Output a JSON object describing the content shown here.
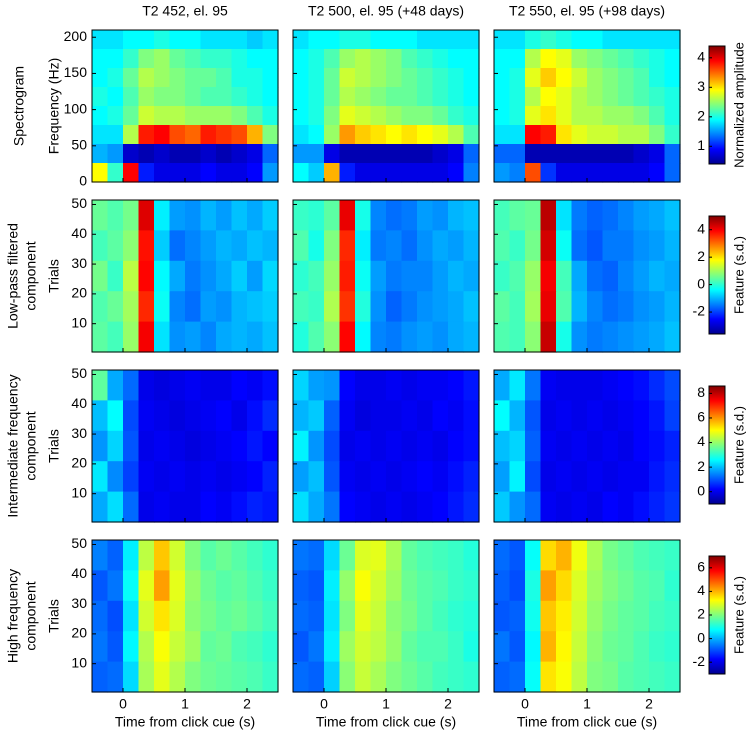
{
  "chart_data": [
    {
      "type": "heatmap",
      "title": "T2 452, el. 95",
      "row_label": [
        "Spectrogram"
      ],
      "ylabel": "Frequency (Hz)",
      "xlim": [
        -0.5,
        2.5
      ],
      "xticks": [
        0,
        1,
        2
      ],
      "ylim": [
        0,
        210
      ],
      "yticks": [
        0,
        50,
        100,
        150,
        200
      ],
      "clim": [
        0.4,
        4.4
      ],
      "z": [
        [
          1.8,
          1.8,
          1.9,
          1.9,
          2.0,
          1.9,
          1.9,
          1.8,
          1.8,
          1.8,
          1.7,
          1.8
        ],
        [
          1.9,
          1.9,
          2.1,
          2.4,
          2.5,
          2.3,
          2.2,
          2.1,
          2.1,
          2.0,
          1.9,
          1.9
        ],
        [
          1.9,
          2.0,
          2.3,
          2.6,
          2.5,
          2.4,
          2.3,
          2.3,
          2.2,
          2.0,
          2.0,
          1.9
        ],
        [
          2.0,
          1.9,
          2.2,
          2.5,
          2.4,
          2.4,
          2.3,
          2.2,
          2.2,
          2.1,
          2.0,
          1.9
        ],
        [
          1.9,
          2.0,
          2.3,
          2.7,
          2.6,
          2.6,
          2.5,
          2.5,
          2.5,
          2.4,
          2.2,
          2.0
        ],
        [
          1.8,
          1.8,
          2.6,
          3.8,
          3.9,
          3.6,
          3.5,
          3.8,
          3.7,
          3.6,
          3.2,
          2.4
        ],
        [
          1.6,
          1.5,
          0.7,
          0.6,
          0.7,
          0.6,
          0.6,
          0.7,
          0.6,
          0.7,
          0.8,
          1.3
        ],
        [
          2.9,
          2.1,
          3.9,
          1.0,
          0.8,
          0.8,
          0.8,
          0.9,
          0.8,
          0.8,
          0.9,
          1.5
        ]
      ]
    },
    {
      "type": "heatmap",
      "title": "T2 500, el. 95 (+48 days)",
      "xlim": [
        -0.5,
        2.5
      ],
      "xticks": [
        0,
        1,
        2
      ],
      "ylim": [
        0,
        210
      ],
      "yticks": [
        0,
        50,
        100,
        150,
        200
      ],
      "clim": [
        0.4,
        4.4
      ],
      "z": [
        [
          1.8,
          1.9,
          1.9,
          2.0,
          2.0,
          1.9,
          1.9,
          1.9,
          1.8,
          1.8,
          1.8,
          1.8
        ],
        [
          1.9,
          2.0,
          2.2,
          2.5,
          2.6,
          2.5,
          2.4,
          2.2,
          2.1,
          2.0,
          1.9,
          1.9
        ],
        [
          1.9,
          2.0,
          2.3,
          2.7,
          2.6,
          2.5,
          2.4,
          2.3,
          2.2,
          2.1,
          2.0,
          1.9
        ],
        [
          1.9,
          2.0,
          2.3,
          2.6,
          2.5,
          2.4,
          2.3,
          2.3,
          2.2,
          2.1,
          2.0,
          1.9
        ],
        [
          1.9,
          2.0,
          2.4,
          2.8,
          2.7,
          2.6,
          2.5,
          2.4,
          2.4,
          2.3,
          2.1,
          2.0
        ],
        [
          1.8,
          1.9,
          2.5,
          3.3,
          3.1,
          3.0,
          2.9,
          3.0,
          2.9,
          2.8,
          2.6,
          2.2
        ],
        [
          1.5,
          1.5,
          0.8,
          0.6,
          0.6,
          0.6,
          0.6,
          0.6,
          0.6,
          0.7,
          0.8,
          1.3
        ],
        [
          1.9,
          1.7,
          3.2,
          1.0,
          0.8,
          0.8,
          0.8,
          0.8,
          0.8,
          0.8,
          0.9,
          1.4
        ]
      ]
    },
    {
      "type": "heatmap",
      "title": "T2 550, el. 95 (+98 days)",
      "xlim": [
        -0.5,
        2.5
      ],
      "xticks": [
        0,
        1,
        2
      ],
      "ylim": [
        0,
        210
      ],
      "yticks": [
        0,
        50,
        100,
        150,
        200
      ],
      "clim": [
        0.4,
        4.4
      ],
      "cticks": [
        1,
        2,
        3,
        4
      ],
      "colorbar_label": "Normalized amplitude",
      "z": [
        [
          1.8,
          1.8,
          2.0,
          2.1,
          2.0,
          1.9,
          1.9,
          1.8,
          1.8,
          1.8,
          1.8,
          1.8
        ],
        [
          1.9,
          1.9,
          2.6,
          2.9,
          2.8,
          2.5,
          2.4,
          2.3,
          2.2,
          2.1,
          2.0,
          1.9
        ],
        [
          1.9,
          2.0,
          2.8,
          3.1,
          2.9,
          2.7,
          2.5,
          2.4,
          2.3,
          2.2,
          2.0,
          1.9
        ],
        [
          1.9,
          2.0,
          2.6,
          2.9,
          2.8,
          2.6,
          2.5,
          2.4,
          2.3,
          2.2,
          2.1,
          2.0
        ],
        [
          1.9,
          2.0,
          2.8,
          3.0,
          2.8,
          2.6,
          2.6,
          2.5,
          2.5,
          2.4,
          2.2,
          2.0
        ],
        [
          1.8,
          1.8,
          3.9,
          3.8,
          3.0,
          2.8,
          2.7,
          2.7,
          2.6,
          2.6,
          2.4,
          2.1
        ],
        [
          1.3,
          1.3,
          0.6,
          0.6,
          0.6,
          0.6,
          0.6,
          0.6,
          0.6,
          0.7,
          0.8,
          1.3
        ],
        [
          1.5,
          1.4,
          3.6,
          1.1,
          0.8,
          0.8,
          0.8,
          0.8,
          0.8,
          0.8,
          0.9,
          1.3
        ]
      ]
    },
    {
      "type": "heatmap",
      "row_label": [
        "Low-pass filtered",
        "component"
      ],
      "ylabel": "Trials",
      "xlim": [
        -0.5,
        2.5
      ],
      "xticks": [
        0,
        1,
        2
      ],
      "ylim": [
        0.5,
        51.5
      ],
      "yticks": [
        10,
        20,
        30,
        40,
        50
      ],
      "clim": [
        -3.6,
        5
      ],
      "z": [
        [
          0.5,
          0.3,
          0.6,
          4.2,
          -0.5,
          -1.2,
          -1.3,
          -1.0,
          -1.2,
          -0.9,
          -1.1,
          -0.8
        ],
        [
          0.2,
          0.4,
          0.8,
          3.8,
          -0.8,
          -1.6,
          -1.4,
          -1.2,
          -1.0,
          -1.1,
          -0.9,
          -1.0
        ],
        [
          0.6,
          0.1,
          1.2,
          3.9,
          -0.4,
          -1.1,
          -1.5,
          -1.3,
          -1.1,
          -0.8,
          -1.2,
          -0.7
        ],
        [
          0.3,
          0.5,
          1.0,
          3.6,
          -0.3,
          -1.4,
          -1.6,
          -1.2,
          -1.3,
          -1.0,
          -0.9,
          -0.8
        ],
        [
          0.4,
          0.2,
          0.9,
          4.0,
          -0.6,
          -1.3,
          -1.2,
          -1.4,
          -1.1,
          -1.0,
          -1.1,
          -0.9
        ]
      ]
    },
    {
      "type": "heatmap",
      "xlim": [
        -0.5,
        2.5
      ],
      "xticks": [
        0,
        1,
        2
      ],
      "ylim": [
        0.5,
        51.5
      ],
      "yticks": [
        10,
        20,
        30,
        40,
        50
      ],
      "clim": [
        -3.6,
        5
      ],
      "z": [
        [
          0.1,
          0.0,
          0.4,
          4.1,
          -0.2,
          -1.4,
          -1.6,
          -1.5,
          -1.2,
          -1.3,
          -1.0,
          -0.9
        ],
        [
          0.3,
          -0.2,
          0.7,
          3.6,
          -0.5,
          -1.5,
          -1.4,
          -1.6,
          -1.3,
          -1.1,
          -1.2,
          -1.0
        ],
        [
          0.0,
          0.2,
          0.9,
          3.7,
          -0.3,
          -1.2,
          -1.5,
          -1.4,
          -1.4,
          -1.2,
          -1.0,
          -1.1
        ],
        [
          0.2,
          0.1,
          1.1,
          3.5,
          -0.1,
          -1.3,
          -1.7,
          -1.5,
          -1.3,
          -1.2,
          -1.1,
          -0.9
        ],
        [
          -0.1,
          0.3,
          0.8,
          3.9,
          -0.4,
          -1.4,
          -1.5,
          -1.3,
          -1.2,
          -1.3,
          -1.1,
          -1.0
        ]
      ]
    },
    {
      "type": "heatmap",
      "xlim": [
        -0.5,
        2.5
      ],
      "xticks": [
        0,
        1,
        2
      ],
      "ylim": [
        0.5,
        51.5
      ],
      "yticks": [
        10,
        20,
        30,
        40,
        50
      ],
      "clim": [
        -3.6,
        5
      ],
      "cticks": [
        -2,
        0,
        2,
        4
      ],
      "colorbar_label": "Feature (s.d.)",
      "z": [
        [
          0.2,
          0.4,
          0.5,
          4.5,
          -0.6,
          -1.5,
          -1.7,
          -1.6,
          -1.4,
          -1.2,
          -1.1,
          -0.9
        ],
        [
          0.3,
          0.1,
          0.6,
          4.3,
          -0.3,
          -1.6,
          -1.8,
          -1.5,
          -1.5,
          -1.3,
          -1.2,
          -1.0
        ],
        [
          0.1,
          0.3,
          0.9,
          4.0,
          0.2,
          -1.1,
          -1.6,
          -1.7,
          -1.4,
          -1.2,
          -1.0,
          -1.1
        ],
        [
          0.4,
          0.2,
          1.0,
          4.1,
          0.3,
          -1.0,
          -1.4,
          -1.6,
          -1.5,
          -1.3,
          -1.2,
          -1.0
        ],
        [
          0.3,
          0.2,
          0.8,
          4.4,
          -0.2,
          -1.3,
          -1.5,
          -1.4,
          -1.3,
          -1.2,
          -1.1,
          -0.9
        ]
      ]
    },
    {
      "type": "heatmap",
      "row_label": [
        "Intermediate frequency",
        "component"
      ],
      "ylabel": "Trials",
      "xlim": [
        -0.5,
        2.5
      ],
      "xticks": [
        0,
        1,
        2
      ],
      "ylim": [
        0.5,
        51.5
      ],
      "yticks": [
        10,
        20,
        30,
        40,
        50
      ],
      "clim": [
        -1,
        8.6
      ],
      "z": [
        [
          3.5,
          1.8,
          1.2,
          0.0,
          -0.1,
          0.0,
          0.1,
          0.0,
          0.0,
          0.2,
          0.1,
          0.3
        ],
        [
          2.0,
          2.6,
          0.9,
          0.1,
          0.0,
          -0.1,
          0.0,
          0.1,
          0.2,
          0.0,
          0.3,
          0.6
        ],
        [
          1.6,
          2.2,
          1.0,
          0.0,
          0.1,
          0.0,
          -0.1,
          0.0,
          0.1,
          0.2,
          0.4,
          0.2
        ],
        [
          2.4,
          1.5,
          0.8,
          0.1,
          0.0,
          0.1,
          0.0,
          0.1,
          0.0,
          0.1,
          0.2,
          0.5
        ],
        [
          1.8,
          2.3,
          1.2,
          0.0,
          0.1,
          0.0,
          0.0,
          0.2,
          0.1,
          0.3,
          0.5,
          0.4
        ]
      ]
    },
    {
      "type": "heatmap",
      "xlim": [
        -0.5,
        2.5
      ],
      "xticks": [
        0,
        1,
        2
      ],
      "ylim": [
        0.5,
        51.5
      ],
      "yticks": [
        10,
        20,
        30,
        40,
        50
      ],
      "clim": [
        -1,
        8.6
      ],
      "z": [
        [
          2.2,
          1.7,
          1.6,
          0.2,
          0.0,
          0.0,
          0.1,
          0.0,
          0.1,
          0.1,
          0.2,
          0.4
        ],
        [
          1.9,
          2.1,
          1.1,
          0.1,
          -0.1,
          0.0,
          0.0,
          0.1,
          0.0,
          0.2,
          0.1,
          0.3
        ],
        [
          2.5,
          1.6,
          0.9,
          0.0,
          0.1,
          0.0,
          0.1,
          0.0,
          0.1,
          0.0,
          0.2,
          0.3
        ],
        [
          1.7,
          2.0,
          1.0,
          0.1,
          0.0,
          0.1,
          0.0,
          0.1,
          0.2,
          0.1,
          0.3,
          0.5
        ],
        [
          2.3,
          1.8,
          1.3,
          0.2,
          0.1,
          0.0,
          0.1,
          0.0,
          0.1,
          0.2,
          0.4,
          0.6
        ]
      ]
    },
    {
      "type": "heatmap",
      "xlim": [
        -0.5,
        2.5
      ],
      "xticks": [
        0,
        1,
        2
      ],
      "ylim": [
        0.5,
        51.5
      ],
      "yticks": [
        10,
        20,
        30,
        40,
        50
      ],
      "clim": [
        -1,
        8.6
      ],
      "cticks": [
        0,
        2,
        4,
        6,
        8
      ],
      "colorbar_label": "Feature (s.d.)",
      "z": [
        [
          1.8,
          2.4,
          1.3,
          0.1,
          0.0,
          0.0,
          0.0,
          0.1,
          0.2,
          0.3,
          0.6,
          0.9
        ],
        [
          2.6,
          1.9,
          1.0,
          0.0,
          0.1,
          0.0,
          0.1,
          0.0,
          0.1,
          0.2,
          0.4,
          0.8
        ],
        [
          2.0,
          2.2,
          1.1,
          0.1,
          0.0,
          0.1,
          0.0,
          0.1,
          0.0,
          0.2,
          0.3,
          0.5
        ],
        [
          1.7,
          2.5,
          0.9,
          0.0,
          0.1,
          0.0,
          0.1,
          0.0,
          0.1,
          0.1,
          0.4,
          0.6
        ],
        [
          2.1,
          1.6,
          1.2,
          0.1,
          0.0,
          0.1,
          0.0,
          0.2,
          0.1,
          0.3,
          0.5,
          0.7
        ]
      ]
    },
    {
      "type": "heatmap",
      "row_label": [
        "High frequency",
        "component"
      ],
      "ylabel": "Trials",
      "xlabel": "Time from click cue (s)",
      "xlim": [
        -0.5,
        2.5
      ],
      "xticks": [
        0,
        1,
        2
      ],
      "ylim": [
        0.5,
        51.5
      ],
      "yticks": [
        10,
        20,
        30,
        40,
        50
      ],
      "clim": [
        -3,
        7
      ],
      "z": [
        [
          -0.5,
          -0.8,
          0.6,
          2.6,
          3.8,
          2.8,
          2.0,
          1.6,
          1.8,
          1.6,
          1.4,
          1.2
        ],
        [
          -0.9,
          -0.6,
          0.8,
          3.0,
          4.2,
          3.0,
          2.2,
          1.8,
          1.6,
          1.7,
          1.5,
          1.3
        ],
        [
          -0.7,
          -1.0,
          0.5,
          2.8,
          3.5,
          2.9,
          2.1,
          1.9,
          1.7,
          1.8,
          1.6,
          1.4
        ],
        [
          -0.6,
          -0.9,
          0.7,
          2.5,
          3.2,
          2.7,
          2.3,
          1.7,
          1.8,
          1.5,
          1.4,
          1.2
        ],
        [
          -0.8,
          -0.7,
          0.4,
          2.4,
          3.0,
          2.5,
          2.0,
          1.8,
          1.7,
          1.6,
          1.5,
          1.3
        ]
      ]
    },
    {
      "type": "heatmap",
      "xlabel": "Time from click cue (s)",
      "xlim": [
        -0.5,
        2.5
      ],
      "xticks": [
        0,
        1,
        2
      ],
      "ylim": [
        0.5,
        51.5
      ],
      "yticks": [
        10,
        20,
        30,
        40,
        50
      ],
      "clim": [
        -3,
        7
      ],
      "z": [
        [
          -0.6,
          -0.7,
          0.4,
          1.8,
          2.9,
          3.0,
          2.4,
          1.7,
          1.5,
          1.4,
          1.3,
          1.1
        ],
        [
          -0.8,
          -0.9,
          0.6,
          2.2,
          3.2,
          2.8,
          2.3,
          1.8,
          1.6,
          1.5,
          1.3,
          1.2
        ],
        [
          -0.7,
          -0.8,
          0.5,
          2.0,
          3.0,
          2.7,
          2.1,
          1.9,
          1.6,
          1.4,
          1.2,
          1.1
        ],
        [
          -0.9,
          -0.6,
          0.6,
          2.3,
          2.8,
          2.6,
          2.2,
          1.7,
          1.5,
          1.5,
          1.3,
          1.0
        ],
        [
          -0.7,
          -0.8,
          0.3,
          2.1,
          2.7,
          2.4,
          2.0,
          1.8,
          1.6,
          1.4,
          1.3,
          1.2
        ]
      ]
    },
    {
      "type": "heatmap",
      "xlabel": "Time from click cue (s)",
      "xlim": [
        -0.5,
        2.5
      ],
      "xticks": [
        0,
        1,
        2
      ],
      "ylim": [
        0.5,
        51.5
      ],
      "yticks": [
        10,
        20,
        30,
        40,
        50
      ],
      "clim": [
        -3,
        7
      ],
      "cticks": [
        -2,
        0,
        2,
        4,
        6
      ],
      "colorbar_label": "Feature (s.d.)",
      "z": [
        [
          -0.7,
          -0.9,
          0.8,
          3.6,
          4.0,
          3.1,
          2.4,
          1.9,
          1.7,
          1.5,
          1.4,
          1.3
        ],
        [
          -0.8,
          -1.0,
          1.0,
          4.2,
          3.6,
          2.9,
          2.3,
          2.0,
          1.8,
          1.6,
          1.5,
          1.2
        ],
        [
          -0.9,
          -0.8,
          0.9,
          3.8,
          3.4,
          2.8,
          2.2,
          1.9,
          1.7,
          1.6,
          1.4,
          1.3
        ],
        [
          -0.6,
          -0.9,
          0.7,
          4.0,
          3.3,
          2.7,
          2.1,
          1.8,
          1.7,
          1.5,
          1.3,
          1.2
        ],
        [
          -0.8,
          -0.7,
          0.8,
          3.5,
          3.2,
          2.6,
          2.0,
          1.9,
          1.6,
          1.5,
          1.4,
          1.3
        ]
      ]
    }
  ]
}
